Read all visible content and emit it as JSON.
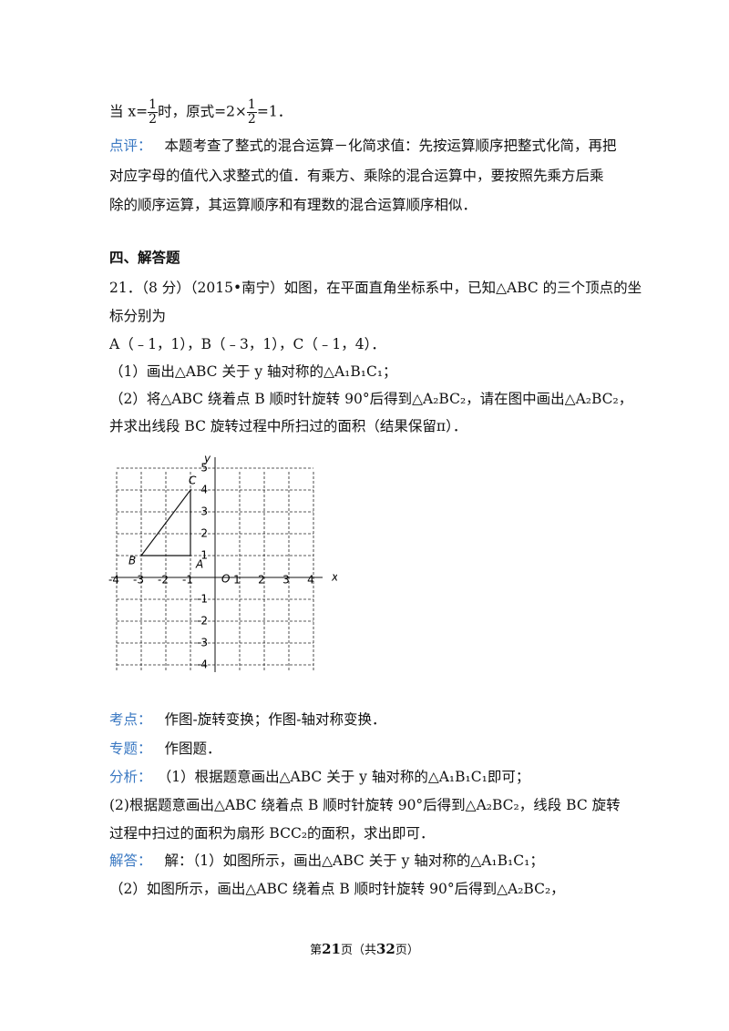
{
  "first_line": {
    "part1": "当 x=",
    "frac1": {
      "num": "1",
      "den": "2"
    },
    "part2": "时，原式=2×",
    "frac2": {
      "num": "1",
      "den": "2"
    },
    "part3": "=1．"
  },
  "comment": {
    "label": "点评：",
    "lines": [
      "本题考查了整式的混合运算－化简求值：先按运算顺序把整式化简，再把",
      "对应字母的值代入求整式的值．有乘方、乘除的混合运算中，要按照先乘方后乘",
      "除的顺序运算，其运算顺序和有理数的混合运算顺序相似．"
    ]
  },
  "section": "四、解答题",
  "problem": {
    "lines": [
      "21．（8 分）（2015•南宁）如图，在平面直角坐标系中，已知△ABC 的三个顶点的坐",
      "标分别为",
      "A（﹣1，1），B（﹣3，1），C（﹣1，4）．",
      "（1）画出△ABC 关于 y 轴对称的△A₁B₁C₁；",
      "（2）将△ABC 绕着点 B 顺时针旋转 90°后得到△A₂BC₂，请在图中画出△A₂BC₂，",
      "并求出线段 BC 旋转过程中所扫过的面积（结果保留π）．"
    ]
  },
  "graph": {
    "x_label": "x",
    "y_label": "y",
    "origin": "O",
    "xticks": [
      -4,
      -3,
      -2,
      -1,
      1,
      2,
      3,
      4
    ],
    "yticks": [
      5,
      4,
      3,
      2,
      1,
      -1,
      -2,
      -3,
      -4
    ],
    "points": [
      {
        "label": "A",
        "x": -1,
        "y": 1
      },
      {
        "label": "B",
        "x": -3,
        "y": 1
      },
      {
        "label": "C",
        "x": -1,
        "y": 4
      }
    ]
  },
  "solution": [
    {
      "label": "考点：",
      "text": "作图-旋转变换；作图-轴对称变换．"
    },
    {
      "label": "专题：",
      "text": "作图题．"
    },
    {
      "label": "分析：",
      "text": "（1）根据题意画出△ABC 关于 y 轴对称的△A₁B₁C₁即可；"
    },
    {
      "label": null,
      "text": "(2)根据题意画出△ABC 绕着点 B 顺时针旋转 90°后得到△A₂BC₂，线段 BC 旋转"
    },
    {
      "label": null,
      "text": "过程中扫过的面积为扇形 BCC₂的面积，求出即可．"
    },
    {
      "label": "解答：",
      "text": "解：（1）如图所示，画出△ABC 关于 y 轴对称的△A₁B₁C₁；"
    },
    {
      "label": null,
      "text": "（2）如图所示，画出△ABC 绕着点 B 顺时针旋转 90°后得到△A₂BC₂，"
    }
  ],
  "footer": {
    "prefix": "第",
    "page": "21",
    "middle": "页（共",
    "total": "32",
    "suffix": "页）"
  }
}
